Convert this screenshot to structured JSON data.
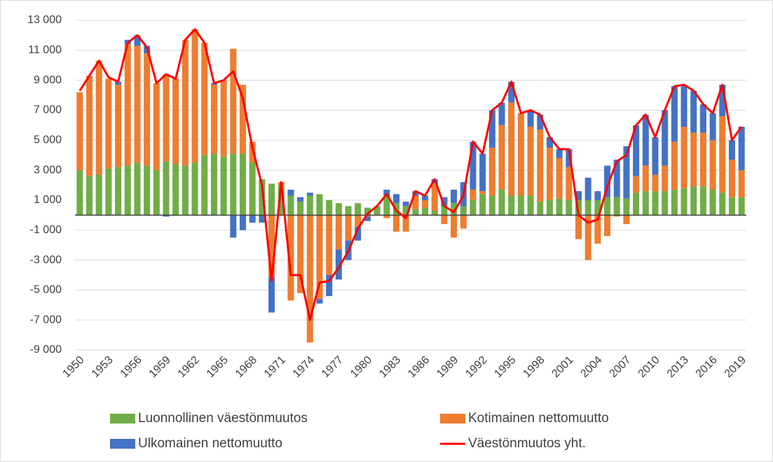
{
  "chart_data": {
    "type": "bar",
    "stacked": true,
    "categories": [
      "1950",
      null,
      null,
      "1953",
      null,
      null,
      "1956",
      null,
      null,
      "1959",
      null,
      null,
      "1962",
      null,
      null,
      "1965",
      null,
      null,
      "1968",
      null,
      null,
      "1971",
      null,
      null,
      "1974",
      null,
      null,
      "1977",
      null,
      null,
      "1980",
      null,
      null,
      "1983",
      null,
      null,
      "1986",
      null,
      null,
      "1989",
      null,
      null,
      "1992",
      null,
      null,
      "1995",
      null,
      null,
      "1998",
      null,
      null,
      "2001",
      null,
      null,
      "2004",
      null,
      null,
      "2007",
      null,
      null,
      "2010",
      null,
      null,
      "2013",
      null,
      null,
      "2016",
      null,
      null,
      "2019"
    ],
    "series": [
      {
        "name": "Luonnollinen väestönmuutos",
        "color": "#70ad47",
        "type": "bar",
        "values": [
          3000,
          2600,
          2700,
          3100,
          3200,
          3300,
          3500,
          3300,
          3000,
          3600,
          3400,
          3300,
          3500,
          4000,
          4100,
          3900,
          4100,
          4100,
          3500,
          2400,
          2100,
          2000,
          1300,
          900,
          1300,
          1400,
          1000,
          800,
          600,
          800,
          500,
          600,
          1300,
          800,
          600,
          400,
          500,
          300,
          600,
          800,
          600,
          1000,
          1400,
          1300,
          1700,
          1300,
          1300,
          1300,
          900,
          1000,
          1100,
          1000,
          1000,
          1000,
          1000,
          1200,
          1200,
          1100,
          1500,
          1600,
          1600,
          1600,
          1700,
          1800,
          1900,
          1900,
          1700,
          1500,
          1200,
          1200
        ]
      },
      {
        "name": "Kotimainen nettomuutto",
        "color": "#ed7d31",
        "type": "bar",
        "values": [
          5200,
          6700,
          7600,
          6000,
          5500,
          8100,
          7800,
          7500,
          5800,
          5800,
          5700,
          8400,
          8900,
          7500,
          4600,
          5100,
          7000,
          4600,
          1400,
          0,
          -4100,
          200,
          -5700,
          -5200,
          -8500,
          -5600,
          -4000,
          -2300,
          -1700,
          -800,
          -100,
          0,
          -200,
          -1100,
          -1100,
          900,
          500,
          1800,
          -600,
          -1500,
          -900,
          700,
          200,
          3200,
          4300,
          6200,
          5500,
          4600,
          4800,
          3500,
          2700,
          2200,
          -1600,
          -3000,
          -1900,
          -1400,
          -100,
          -600,
          1100,
          1700,
          1100,
          1700,
          3200,
          4100,
          3600,
          3600,
          3300,
          5100,
          2500,
          1800
        ]
      },
      {
        "name": "Ulkomainen nettomuutto",
        "color": "#4472c4",
        "type": "bar",
        "values": [
          0,
          0,
          0,
          0,
          200,
          300,
          700,
          500,
          0,
          -100,
          0,
          0,
          0,
          0,
          100,
          0,
          -1500,
          -1000,
          -500,
          -500,
          -2400,
          0,
          400,
          300,
          200,
          -300,
          -1400,
          -2000,
          -1300,
          -900,
          -300,
          0,
          400,
          600,
          300,
          300,
          300,
          300,
          600,
          900,
          1600,
          3200,
          2500,
          2500,
          1500,
          1400,
          0,
          1100,
          1000,
          700,
          600,
          1200,
          600,
          1500,
          600,
          2100,
          2500,
          3500,
          3400,
          3400,
          2500,
          3700,
          3700,
          2800,
          2800,
          1900,
          1800,
          2100,
          1300,
          2900
        ]
      },
      {
        "name": "Väestönmuutos yht.",
        "color": "#ff0000",
        "type": "line",
        "values": [
          8300,
          9300,
          10300,
          9200,
          8900,
          11500,
          12000,
          11200,
          8800,
          9400,
          9100,
          11700,
          12400,
          11500,
          8800,
          9000,
          9600,
          7800,
          4500,
          2000,
          -4400,
          2200,
          -4000,
          -4000,
          -7000,
          -4500,
          -4400,
          -3500,
          -2400,
          -900,
          100,
          600,
          1400,
          300,
          -200,
          1600,
          1300,
          2400,
          600,
          200,
          1300,
          4900,
          4100,
          7000,
          7500,
          8900,
          6800,
          7000,
          6700,
          5200,
          4400,
          4400,
          0,
          -500,
          -300,
          1900,
          3600,
          4000,
          6000,
          6700,
          5200,
          7000,
          8600,
          8700,
          8300,
          7400,
          6800,
          8700,
          5000,
          5900
        ]
      }
    ],
    "ylim": [
      -9000,
      13000
    ],
    "yticks": [
      {
        "value": -9000,
        "label": "-9 000"
      },
      {
        "value": -7000,
        "label": "-7 000"
      },
      {
        "value": -5000,
        "label": "-5 000"
      },
      {
        "value": -3000,
        "label": "-3 000"
      },
      {
        "value": -1000,
        "label": "-1 000"
      },
      {
        "value": 1000,
        "label": "1 000"
      },
      {
        "value": 3000,
        "label": "3 000"
      },
      {
        "value": 5000,
        "label": "5 000"
      },
      {
        "value": 7000,
        "label": "7 000"
      },
      {
        "value": 9000,
        "label": "9 000"
      },
      {
        "value": 11000,
        "label": "11 000"
      },
      {
        "value": 13000,
        "label": "13 000"
      }
    ],
    "grid": true,
    "legend": "bottom"
  }
}
